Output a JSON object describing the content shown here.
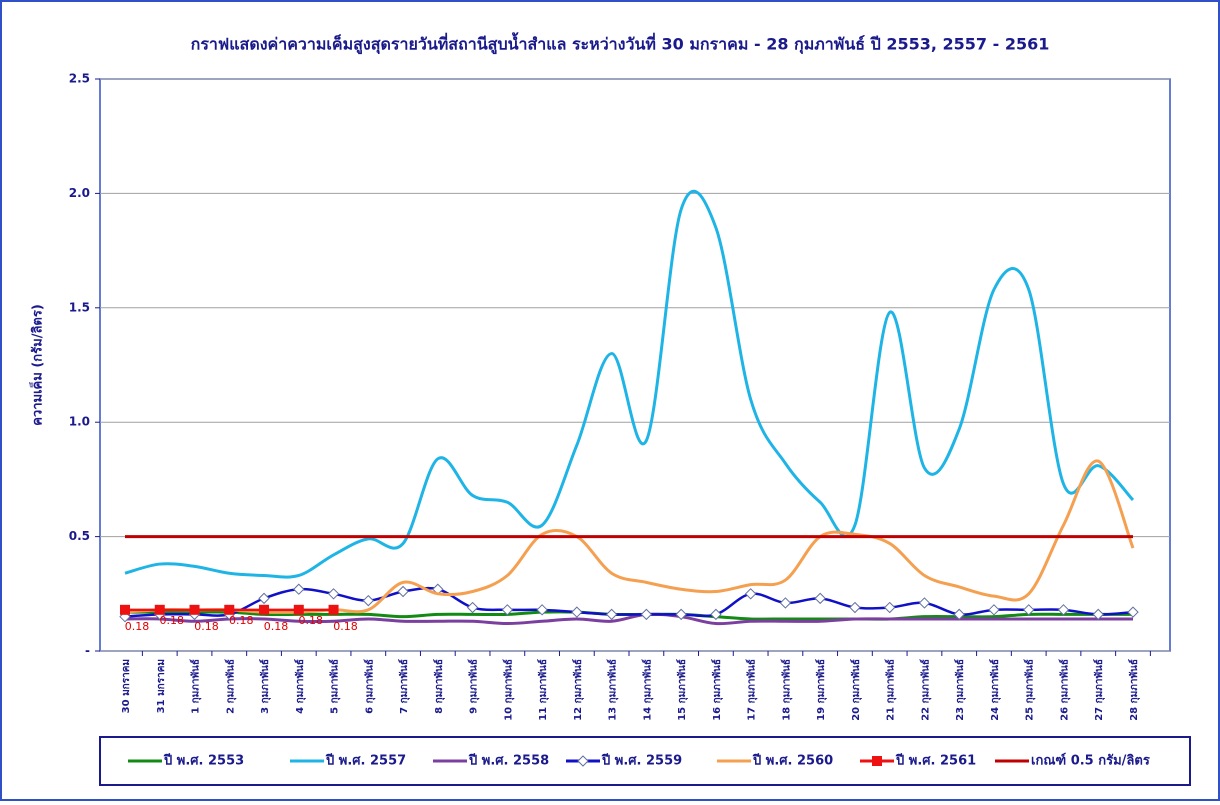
{
  "chart_data": {
    "type": "line",
    "title": "กราฟแสดงค่าความเค็มสูงสุดรายวันที่สถานีสูบน้ำสำแล ระหว่างวันที่ 30 มกราคม - 28 กุมภาพันธ์ ปี 2553, 2557 - 2561",
    "y_label": "ความเค็ม (กรัม/ลิตร)",
    "categories": [
      "30 มกราคม",
      "31 มกราคม",
      "1 กุมภาพันธ์",
      "2 กุมภาพันธ์",
      "3 กุมภาพันธ์",
      "4 กุมภาพันธ์",
      "5 กุมภาพันธ์",
      "6 กุมภาพันธ์",
      "7 กุมภาพันธ์",
      "8 กุมภาพันธ์",
      "9 กุมภาพันธ์",
      "10 กุมภาพันธ์",
      "11 กุมภาพันธ์",
      "12 กุมภาพันธ์",
      "13 กุมภาพันธ์",
      "14 กุมภาพันธ์",
      "15 กุมภาพันธ์",
      "16 กุมภาพันธ์",
      "17 กุมภาพันธ์",
      "18 กุมภาพันธ์",
      "19 กุมภาพันธ์",
      "20 กุมภาพันธ์",
      "21 กุมภาพันธ์",
      "22 กุมภาพันธ์",
      "23 กุมภาพันธ์",
      "24 กุมภาพันธ์",
      "25 กุมภาพันธ์",
      "26 กุมภาพันธ์",
      "27 กุมภาพันธ์",
      "28 กุมภาพันธ์"
    ],
    "ylim": [
      0,
      2.5
    ],
    "yticks": [
      {
        "value": 0,
        "label": "-"
      },
      0.5,
      {
        "value": 1,
        "label": "1.0"
      },
      1.5,
      {
        "value": 2,
        "label": "2.0"
      },
      2.5
    ],
    "grid": true,
    "series": [
      {
        "name": "ปี พ.ศ. 2553",
        "color": "#138a13",
        "values": [
          0.17,
          0.17,
          0.17,
          0.17,
          0.16,
          0.16,
          0.16,
          0.16,
          0.15,
          0.16,
          0.16,
          0.16,
          0.17,
          0.17,
          0.16,
          0.16,
          0.16,
          0.15,
          0.14,
          0.14,
          0.14,
          0.14,
          0.14,
          0.15,
          0.15,
          0.15,
          0.16,
          0.16,
          0.16,
          0.16
        ]
      },
      {
        "name": "ปี พ.ศ. 2557",
        "color": "#1fb4e6",
        "values": [
          0.34,
          0.38,
          0.37,
          0.34,
          0.33,
          0.33,
          0.42,
          0.49,
          0.47,
          0.84,
          0.68,
          0.65,
          0.55,
          0.9,
          1.3,
          0.92,
          1.93,
          1.85,
          1.1,
          0.82,
          0.65,
          0.55,
          1.48,
          0.8,
          0.97,
          1.58,
          1.58,
          0.73,
          0.81,
          0.66
        ]
      },
      {
        "name": "ปี พ.ศ. 2558",
        "color": "#7b3fa0",
        "values": [
          0.14,
          0.14,
          0.13,
          0.14,
          0.14,
          0.13,
          0.13,
          0.14,
          0.13,
          0.13,
          0.13,
          0.12,
          0.13,
          0.14,
          0.13,
          0.16,
          0.15,
          0.12,
          0.13,
          0.13,
          0.13,
          0.14,
          0.14,
          0.14,
          0.14,
          0.14,
          0.14,
          0.14,
          0.14,
          0.14
        ]
      },
      {
        "name": "ปี พ.ศ. 2559",
        "color": "#1010c8",
        "marker": "diamond",
        "values": [
          0.15,
          0.16,
          0.16,
          0.16,
          0.23,
          0.27,
          0.25,
          0.22,
          0.26,
          0.27,
          0.19,
          0.18,
          0.18,
          0.17,
          0.16,
          0.16,
          0.16,
          0.16,
          0.25,
          0.21,
          0.23,
          0.19,
          0.19,
          0.21,
          0.16,
          0.18,
          0.18,
          0.18,
          0.16,
          0.17
        ]
      },
      {
        "name": "ปี พ.ศ. 2560",
        "color": "#f5a050",
        "values": [
          0.17,
          0.18,
          0.18,
          0.18,
          0.17,
          0.17,
          0.18,
          0.18,
          0.3,
          0.25,
          0.26,
          0.33,
          0.51,
          0.5,
          0.34,
          0.3,
          0.27,
          0.26,
          0.29,
          0.31,
          0.5,
          0.51,
          0.47,
          0.33,
          0.28,
          0.24,
          0.25,
          0.55,
          0.83,
          0.45
        ]
      },
      {
        "name": "ปี พ.ศ. 2561",
        "color": "#ee1111",
        "marker": "square",
        "data_labels": true,
        "values": [
          0.18,
          0.18,
          0.18,
          0.18,
          0.18,
          0.18,
          0.18,
          null,
          null,
          null,
          null,
          null,
          null,
          null,
          null,
          null,
          null,
          null,
          null,
          null,
          null,
          null,
          null,
          null,
          null,
          null,
          null,
          null,
          null,
          null
        ]
      },
      {
        "name": "เกณฑ์ 0.5 กรัม/ลิตร",
        "color": "#c00000",
        "values": [
          0.5,
          0.5,
          0.5,
          0.5,
          0.5,
          0.5,
          0.5,
          0.5,
          0.5,
          0.5,
          0.5,
          0.5,
          0.5,
          0.5,
          0.5,
          0.5,
          0.5,
          0.5,
          0.5,
          0.5,
          0.5,
          0.5,
          0.5,
          0.5,
          0.5,
          0.5,
          0.5,
          0.5,
          0.5,
          0.5
        ]
      }
    ]
  }
}
